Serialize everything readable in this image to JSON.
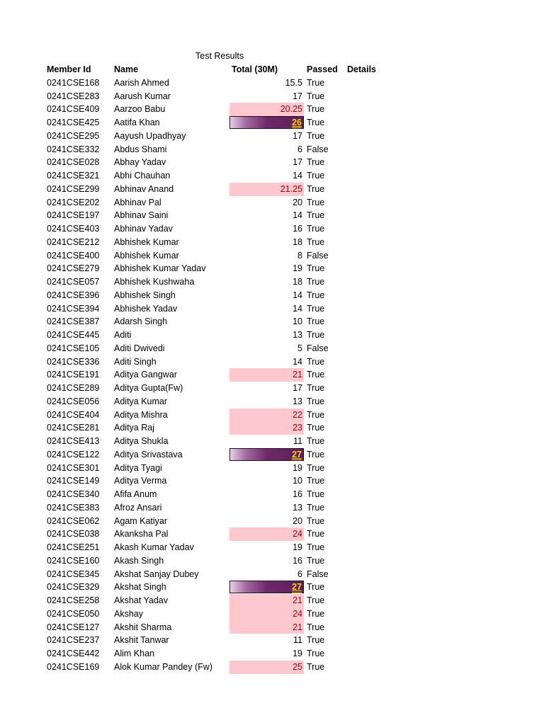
{
  "title": "Test Results",
  "headers": {
    "member_id": "Member Id",
    "name": "Name",
    "total": "Total (30M)",
    "passed": "Passed",
    "details": "Details"
  },
  "highlight_colors": {
    "pink_fill": "#ffc7ce",
    "pink_text": "#9c0006",
    "purple_fill": "#6e2a6a",
    "purple_text": "#ffd400"
  },
  "rows": [
    {
      "id": "0241CSE168",
      "name": "Aarish Ahmed",
      "total": "15.5",
      "passed": "True",
      "style": "normal"
    },
    {
      "id": "0241CSE283",
      "name": "Aarush Kumar",
      "total": "17",
      "passed": "True",
      "style": "normal"
    },
    {
      "id": "0241CSE409",
      "name": "Aarzoo Babu",
      "total": "20.25",
      "passed": "True",
      "style": "pink"
    },
    {
      "id": "0241CSE425",
      "name": "Aatifa Khan",
      "total": "26",
      "passed": "True",
      "style": "purple"
    },
    {
      "id": "0241CSE295",
      "name": "Aayush Upadhyay",
      "total": "17",
      "passed": "True",
      "style": "normal"
    },
    {
      "id": "0241CSE332",
      "name": "Abdus Shami",
      "total": "6",
      "passed": "False",
      "style": "normal"
    },
    {
      "id": "0241CSE028",
      "name": "Abhay Yadav",
      "total": "17",
      "passed": "True",
      "style": "normal"
    },
    {
      "id": "0241CSE321",
      "name": "Abhi Chauhan",
      "total": "14",
      "passed": "True",
      "style": "normal"
    },
    {
      "id": "0241CSE299",
      "name": "Abhinav Anand",
      "total": "21.25",
      "passed": "True",
      "style": "pink"
    },
    {
      "id": "0241CSE202",
      "name": "Abhinav Pal",
      "total": "20",
      "passed": "True",
      "style": "normal"
    },
    {
      "id": "0241CSE197",
      "name": "Abhinav Saini",
      "total": "14",
      "passed": "True",
      "style": "normal"
    },
    {
      "id": "0241CSE403",
      "name": "Abhinav Yadav",
      "total": "16",
      "passed": "True",
      "style": "normal"
    },
    {
      "id": "0241CSE212",
      "name": "Abhishek Kumar",
      "total": "18",
      "passed": "True",
      "style": "normal"
    },
    {
      "id": "0241CSE400",
      "name": "Abhishek Kumar",
      "total": "8",
      "passed": "False",
      "style": "normal"
    },
    {
      "id": "0241CSE279",
      "name": "Abhishek Kumar Yadav",
      "total": "19",
      "passed": "True",
      "style": "normal"
    },
    {
      "id": "0241CSE057",
      "name": "Abhishek Kushwaha",
      "total": "18",
      "passed": "True",
      "style": "normal"
    },
    {
      "id": "0241CSE396",
      "name": "Abhishek Singh",
      "total": "14",
      "passed": "True",
      "style": "normal"
    },
    {
      "id": "0241CSE394",
      "name": "Abhishek Yadav",
      "total": "14",
      "passed": "True",
      "style": "normal"
    },
    {
      "id": "0241CSE387",
      "name": "Adarsh Singh",
      "total": "10",
      "passed": "True",
      "style": "normal"
    },
    {
      "id": "0241CSE445",
      "name": "Aditi",
      "total": "13",
      "passed": "True",
      "style": "normal"
    },
    {
      "id": "0241CSE105",
      "name": "Aditi Dwivedi",
      "total": "5",
      "passed": "False",
      "style": "normal"
    },
    {
      "id": "0241CSE336",
      "name": "Aditi Singh",
      "total": "14",
      "passed": "True",
      "style": "normal"
    },
    {
      "id": "0241CSE191",
      "name": "Aditya Gangwar",
      "total": "21",
      "passed": "True",
      "style": "pink"
    },
    {
      "id": "0241CSE289",
      "name": "Aditya Gupta(Fw)",
      "total": "17",
      "passed": "True",
      "style": "normal"
    },
    {
      "id": "0241CSE056",
      "name": "Aditya Kumar",
      "total": "13",
      "passed": "True",
      "style": "normal"
    },
    {
      "id": "0241CSE404",
      "name": "Aditya Mishra",
      "total": "22",
      "passed": "True",
      "style": "pink"
    },
    {
      "id": "0241CSE281",
      "name": "Aditya Raj",
      "total": "23",
      "passed": "True",
      "style": "pink"
    },
    {
      "id": "0241CSE413",
      "name": "Aditya Shukla",
      "total": "11",
      "passed": "True",
      "style": "normal"
    },
    {
      "id": "0241CSE122",
      "name": "Aditya Srivastava",
      "total": "27",
      "passed": "True",
      "style": "purple"
    },
    {
      "id": "0241CSE301",
      "name": "Aditya Tyagi",
      "total": "19",
      "passed": "True",
      "style": "normal"
    },
    {
      "id": "0241CSE149",
      "name": "Aditya Verma",
      "total": "10",
      "passed": "True",
      "style": "normal"
    },
    {
      "id": "0241CSE340",
      "name": "Afifa Anum",
      "total": "16",
      "passed": "True",
      "style": "normal"
    },
    {
      "id": "0241CSE383",
      "name": "Afroz Ansari",
      "total": "13",
      "passed": "True",
      "style": "normal"
    },
    {
      "id": "0241CSE062",
      "name": "Agam Katiyar",
      "total": "20",
      "passed": "True",
      "style": "normal"
    },
    {
      "id": "0241CSE038",
      "name": "Akanksha Pal",
      "total": "24",
      "passed": "True",
      "style": "pink"
    },
    {
      "id": "0241CSE251",
      "name": "Akash Kumar Yadav",
      "total": "19",
      "passed": "True",
      "style": "normal"
    },
    {
      "id": "0241CSE160",
      "name": "Akash Singh",
      "total": "16",
      "passed": "True",
      "style": "normal"
    },
    {
      "id": "0241CSE345",
      "name": "Akshat Sanjay Dubey",
      "total": "6",
      "passed": "False",
      "style": "normal"
    },
    {
      "id": "0241CSE329",
      "name": "Akshat Singh",
      "total": "27",
      "passed": "True",
      "style": "purple"
    },
    {
      "id": "0241CSE258",
      "name": "Akshat Yadav",
      "total": "21",
      "passed": "True",
      "style": "pink"
    },
    {
      "id": "0241CSE050",
      "name": "Akshay",
      "total": "24",
      "passed": "True",
      "style": "pink"
    },
    {
      "id": "0241CSE127",
      "name": "Akshit Sharma",
      "total": "21",
      "passed": "True",
      "style": "pink"
    },
    {
      "id": "0241CSE237",
      "name": "Akshit Tanwar",
      "total": "11",
      "passed": "True",
      "style": "normal"
    },
    {
      "id": "0241CSE442",
      "name": "Alim Khan",
      "total": "19",
      "passed": "True",
      "style": "normal"
    },
    {
      "id": "0241CSE169",
      "name": "Alok Kumar Pandey (Fw)",
      "total": "25",
      "passed": "True",
      "style": "pink"
    }
  ]
}
